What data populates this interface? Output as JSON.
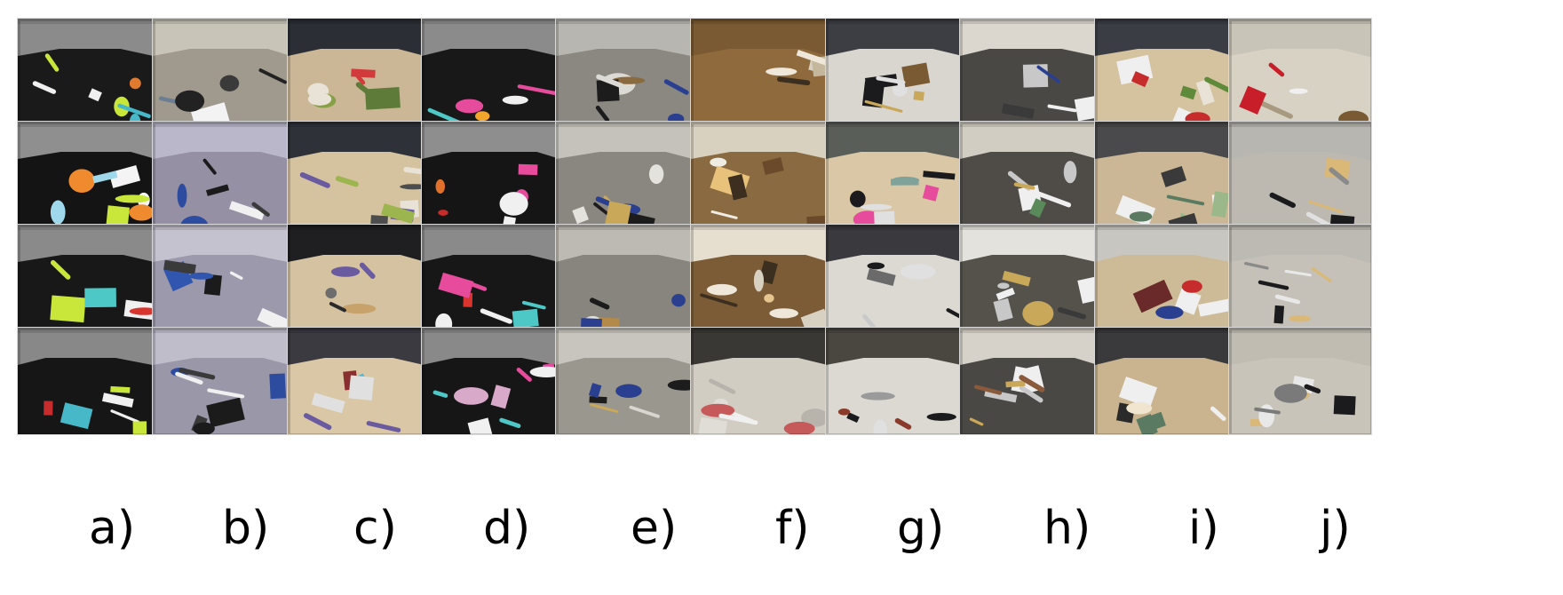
{
  "figure": {
    "column_labels": [
      "a)",
      "b)",
      "c)",
      "d)",
      "e)",
      "f)",
      "g)",
      "h)",
      "i)",
      "j)"
    ],
    "rows": 4,
    "columns": [
      {
        "label": "a)",
        "scene": "object-playset-booth",
        "tiles": [
          {
            "name": "booth-toys-view-1",
            "palette": {
              "bg": "#8b8b8b",
              "floor": "#1a1a1a",
              "accents": [
                "#c9e63a",
                "#f0f0f0",
                "#47b8c8",
                "#e07a2f"
              ]
            }
          },
          {
            "name": "booth-toys-view-2",
            "palette": {
              "bg": "#8f8f8f",
              "floor": "#141414",
              "accents": [
                "#c9e63a",
                "#f4f4f4",
                "#9fd8ea",
                "#f08a2e"
              ]
            }
          },
          {
            "name": "booth-toys-view-3",
            "palette": {
              "bg": "#8a8a8a",
              "floor": "#181818",
              "accents": [
                "#c9e63a",
                "#f0f0f0",
                "#4ec7c7",
                "#d7352e"
              ]
            }
          },
          {
            "name": "booth-toys-view-4",
            "palette": {
              "bg": "#888888",
              "floor": "#161616",
              "accents": [
                "#c9e63a",
                "#f0f0f0",
                "#47b8c8",
                "#c62c2c"
              ]
            }
          }
        ]
      },
      {
        "label": "b)",
        "scene": "bicycle-wall",
        "tiles": [
          {
            "name": "bicycle-view-1",
            "palette": {
              "bg": "#c8c4b8",
              "floor": "#a09a8e",
              "accents": [
                "#222222",
                "#f3f3f3",
                "#6d7d92",
                "#3a3a3a"
              ]
            }
          },
          {
            "name": "bicycle-view-2",
            "palette": {
              "bg": "#b9b7c9",
              "floor": "#9690a4",
              "accents": [
                "#1b1b1b",
                "#2d4ca0",
                "#f0f0f0",
                "#3a3a3a"
              ]
            }
          },
          {
            "name": "bicycle-view-3",
            "palette": {
              "bg": "#c5c2d0",
              "floor": "#9d99ac",
              "accents": [
                "#1b1b1b",
                "#3156b0",
                "#f0f0f0",
                "#3a3a3a"
              ]
            }
          },
          {
            "name": "bicycle-view-4",
            "palette": {
              "bg": "#c0bdcb",
              "floor": "#9a97a8",
              "accents": [
                "#1b1b1b",
                "#2d4ca0",
                "#f0f0f0",
                "#3a3a3a"
              ]
            }
          }
        ]
      },
      {
        "label": "c)",
        "scene": "office-desk-box",
        "tiles": [
          {
            "name": "desk-box-view-1",
            "palette": {
              "bg": "#2b2f35",
              "floor": "#cbb796",
              "accents": [
                "#5f7b3a",
                "#d23b3b",
                "#e8e3d6",
                "#87a046"
              ]
            }
          },
          {
            "name": "desk-box-view-2",
            "palette": {
              "bg": "#2e3238",
              "floor": "#d5c3a0",
              "accents": [
                "#6a5aa0",
                "#9db54e",
                "#e8e3d6",
                "#4d4d4d"
              ]
            }
          },
          {
            "name": "desk-box-view-3",
            "palette": {
              "bg": "#1f1f22",
              "floor": "#d4c2a1",
              "accents": [
                "#6a5aa0",
                "#6d6d6d",
                "#c7a36b",
                "#2b2b2b"
              ]
            }
          },
          {
            "name": "desk-box-view-4",
            "palette": {
              "bg": "#3a3a40",
              "floor": "#d9c7a6",
              "accents": [
                "#6a5aa0",
                "#e0e0e0",
                "#56b4d4",
                "#8a2f2f"
              ]
            }
          }
        ]
      },
      {
        "label": "d)",
        "scene": "object-playset-booth-2",
        "tiles": [
          {
            "name": "booth-toys-b-view-1",
            "palette": {
              "bg": "#8b8b8b",
              "floor": "#181818",
              "accents": [
                "#e64b9c",
                "#f0f0f0",
                "#f0a52c",
                "#4ec7c7"
              ]
            }
          },
          {
            "name": "booth-toys-b-view-2",
            "palette": {
              "bg": "#8e8e8e",
              "floor": "#151515",
              "accents": [
                "#e64b9c",
                "#f0f0f0",
                "#e0702a",
                "#c62c2c"
              ]
            }
          },
          {
            "name": "booth-toys-b-view-3",
            "palette": {
              "bg": "#8a8a8a",
              "floor": "#171717",
              "accents": [
                "#e64b9c",
                "#f0f0f0",
                "#4ec7c7",
                "#d7352e"
              ]
            }
          },
          {
            "name": "booth-toys-b-view-4",
            "palette": {
              "bg": "#898989",
              "floor": "#161616",
              "accents": [
                "#e64b9c",
                "#f0f0f0",
                "#4ec7c7",
                "#d9a9c9"
              ]
            }
          }
        ]
      },
      {
        "label": "e)",
        "scene": "hallway-cart",
        "tiles": [
          {
            "name": "hallway-cart-view-1",
            "palette": {
              "bg": "#b8b6b0",
              "floor": "#8b8882",
              "accents": [
                "#2a3f8f",
                "#1c1c1c",
                "#dcdad4",
                "#8a6b40"
              ]
            }
          },
          {
            "name": "hallway-cart-view-2",
            "palette": {
              "bg": "#c5c2bb",
              "floor": "#8a8780",
              "accents": [
                "#2a3f8f",
                "#1c1c1c",
                "#e4e2dc",
                "#c9a85a"
              ]
            }
          },
          {
            "name": "hallway-cart-view-3",
            "palette": {
              "bg": "#bdbab3",
              "floor": "#88857e",
              "accents": [
                "#2a3f8f",
                "#1c1c1c",
                "#e0ded8",
                "#b38a4a"
              ]
            }
          },
          {
            "name": "hallway-cart-view-4",
            "palette": {
              "bg": "#c8c5be",
              "floor": "#9a978f",
              "accents": [
                "#2a3f8f",
                "#1c1c1c",
                "#d9d6cf",
                "#c9a85a"
              ]
            }
          }
        ]
      },
      {
        "label": "f)",
        "scene": "kitchen-fridge",
        "tiles": [
          {
            "name": "fridge-view-1",
            "palette": {
              "bg": "#7a5a32",
              "floor": "#8f6a3c",
              "accents": [
                "#efe8da",
                "#d8d0c0",
                "#3d2f20",
                "#c5b79c"
              ]
            }
          },
          {
            "name": "fridge-view-2",
            "palette": {
              "bg": "#d9d1c0",
              "floor": "#8a6a40",
              "accents": [
                "#efece4",
                "#6a4a2a",
                "#e8c27a",
                "#3d2f20"
              ]
            }
          },
          {
            "name": "fridge-view-3",
            "palette": {
              "bg": "#e6dfd0",
              "floor": "#7b5c36",
              "accents": [
                "#efe8da",
                "#d8d0c0",
                "#3d2f20",
                "#e6c58e"
              ]
            }
          },
          {
            "name": "fridge-view-4",
            "palette": {
              "bg": "#3a3834",
              "floor": "#d2cdc2",
              "accents": [
                "#e0ddd6",
                "#b8b4ac",
                "#c65a5a",
                "#f0f0f0"
              ]
            }
          }
        ]
      },
      {
        "label": "g)",
        "scene": "laptop-desk",
        "tiles": [
          {
            "name": "laptop-view-1",
            "palette": {
              "bg": "#3c3e44",
              "floor": "#d9d6cf",
              "accents": [
                "#1b1b1d",
                "#c9a85a",
                "#e0e0e0",
                "#7a5a32"
              ]
            }
          },
          {
            "name": "laptop-view-2",
            "palette": {
              "bg": "#5a5e58",
              "floor": "#d9c7a6",
              "accents": [
                "#1b1b1d",
                "#e64b9c",
                "#7fa39a",
                "#e0e0e0"
              ]
            }
          },
          {
            "name": "laptop-view-3",
            "palette": {
              "bg": "#3a3a3e",
              "floor": "#dcd9d2",
              "accents": [
                "#1b1b1d",
                "#e0e0e0",
                "#c9c9c9",
                "#6a6a6a"
              ]
            }
          },
          {
            "name": "laptop-view-4",
            "palette": {
              "bg": "#4a4640",
              "floor": "#dcd9d2",
              "accents": [
                "#1b1b1d",
                "#8a3a2a",
                "#e0e0e0",
                "#9a9a9a"
              ]
            }
          }
        ]
      },
      {
        "label": "h)",
        "scene": "printer-copier",
        "tiles": [
          {
            "name": "copier-view-1",
            "palette": {
              "bg": "#dcd7ce",
              "floor": "#4a4844",
              "accents": [
                "#efefef",
                "#c8c8c8",
                "#2a3f8f",
                "#3a3a3a"
              ]
            }
          },
          {
            "name": "copier-view-2",
            "palette": {
              "bg": "#d2cdc2",
              "floor": "#4f4c47",
              "accents": [
                "#efefef",
                "#c8c8c8",
                "#c9a85a",
                "#5a8a5a"
              ]
            }
          },
          {
            "name": "copier-view-3",
            "palette": {
              "bg": "#e4e2dc",
              "floor": "#55524c",
              "accents": [
                "#efefef",
                "#c8c8c8",
                "#c9a85a",
                "#3a3a3a"
              ]
            }
          },
          {
            "name": "copier-view-4",
            "palette": {
              "bg": "#d6d2c9",
              "floor": "#4a4844",
              "accents": [
                "#efefef",
                "#c8c8c8",
                "#c9a85a",
                "#8a5a3a"
              ]
            }
          }
        ]
      },
      {
        "label": "i)",
        "scene": "scanner-table",
        "tiles": [
          {
            "name": "scanner-view-1",
            "palette": {
              "bg": "#3a3d44",
              "floor": "#d5c3a0",
              "accents": [
                "#efefef",
                "#5f8a3a",
                "#c62c2c",
                "#e8e3d6"
              ]
            }
          },
          {
            "name": "scanner-view-2",
            "palette": {
              "bg": "#4a4a4c",
              "floor": "#cbb796",
              "accents": [
                "#efefef",
                "#5a7a62",
                "#3a3a3a",
                "#9ab88a"
              ]
            }
          },
          {
            "name": "scanner-view-3",
            "palette": {
              "bg": "#c8c6c0",
              "floor": "#cdbb98",
              "accents": [
                "#efefef",
                "#2a3f8f",
                "#c62c2c",
                "#6a2a2a"
              ]
            }
          },
          {
            "name": "scanner-view-4",
            "palette": {
              "bg": "#3a3a3c",
              "floor": "#c9b48f",
              "accents": [
                "#efefef",
                "#5a7a62",
                "#2a2a2a",
                "#f0e6d0"
              ]
            }
          }
        ]
      },
      {
        "label": "j)",
        "scene": "office-room",
        "tiles": [
          {
            "name": "office-red-chairs-view",
            "palette": {
              "bg": "#c9c4b8",
              "floor": "#d8d2c4",
              "accents": [
                "#c81e2a",
                "#7a5a32",
                "#a89a80",
                "#f0f0f0"
              ]
            }
          },
          {
            "name": "office-cubicle-view-1",
            "palette": {
              "bg": "#b8b6b0",
              "floor": "#bdb9b1",
              "accents": [
                "#1b1b1d",
                "#d9b878",
                "#e0e0e0",
                "#8a8a8a"
              ]
            }
          },
          {
            "name": "office-cubicle-view-2",
            "palette": {
              "bg": "#bdbab3",
              "floor": "#c5c1b8",
              "accents": [
                "#1b1b1d",
                "#d9b878",
                "#e8e8e8",
                "#8a8a8a"
              ]
            }
          },
          {
            "name": "office-cubicle-view-3",
            "palette": {
              "bg": "#c0bcb2",
              "floor": "#c9c4ba",
              "accents": [
                "#1b1b1d",
                "#d9b878",
                "#e8e8e8",
                "#7a7a7a"
              ]
            }
          }
        ]
      }
    ]
  }
}
